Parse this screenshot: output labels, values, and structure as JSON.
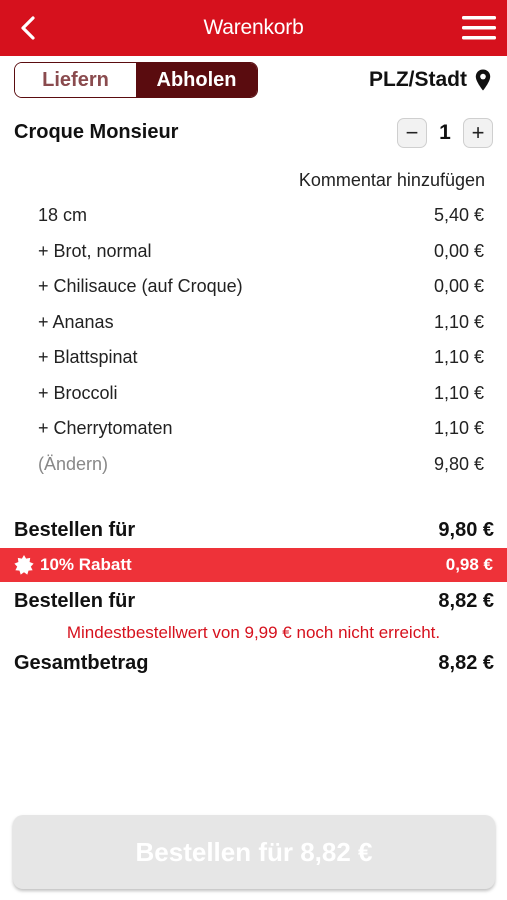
{
  "header": {
    "title": "Warenkorb",
    "back_icon": "chevron-left-icon",
    "menu_icon": "hamburger-menu-icon",
    "color": "#d6111d"
  },
  "mode_toggle": {
    "options": [
      "Liefern",
      "Abholen"
    ],
    "selected": "Abholen"
  },
  "location": {
    "label": "PLZ/Stadt",
    "icon": "map-pin-icon"
  },
  "product": {
    "name": "Croque Monsieur",
    "quantity": "1",
    "decrease_label": "−",
    "increase_label": "+",
    "comment_label": "Kommentar hinzufügen",
    "lines": [
      {
        "label": "18 cm",
        "price": "5,40 €"
      },
      {
        "label": "+ Brot, normal",
        "price": "0,00 €"
      },
      {
        "label": "+ Chilisauce (auf Croque)",
        "price": "0,00 €"
      },
      {
        "label": "+ Ananas",
        "price": "1,10 €"
      },
      {
        "label": "+ Blattspinat",
        "price": "1,10 €"
      },
      {
        "label": "+ Broccoli",
        "price": "1,10 €"
      },
      {
        "label": "+ Cherrytomaten",
        "price": "1,10 €"
      }
    ],
    "change": {
      "label": "(Ändern)",
      "price": "9,80 €"
    }
  },
  "summary": {
    "subtotal_label": "Bestellen für",
    "subtotal_value": "9,80 €",
    "discount_label": "10% Rabatt",
    "discount_value": "0,98 €",
    "discount_icon": "badge-star-icon",
    "discount_color": "#ee3239",
    "after_discount_label": "Bestellen für",
    "after_discount_value": "8,82 €",
    "warning": "Mindestbestellwert von 9,99 € noch nicht erreicht.",
    "total_label": "Gesamtbetrag",
    "total_value": "8,82 €"
  },
  "order_button": {
    "label": "Bestellen für 8,82 €"
  }
}
